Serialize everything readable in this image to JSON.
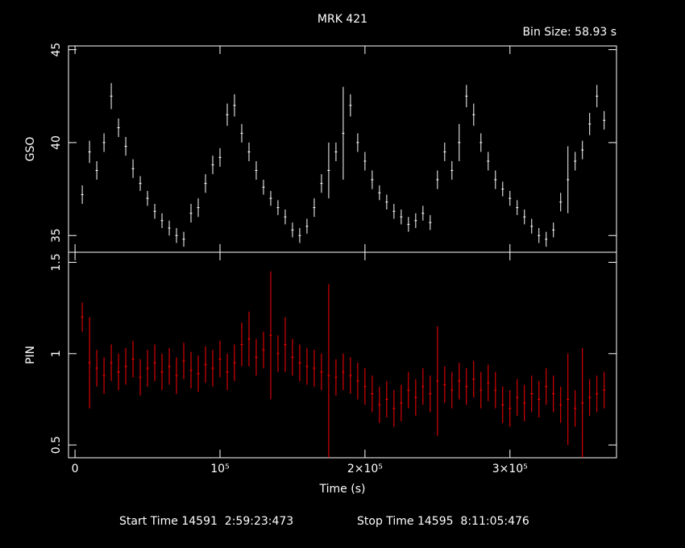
{
  "chart_data": [
    {
      "type": "errorbar",
      "title": "MRK 421",
      "subtitle": "Bin Size: 58.93 s",
      "ylabel": "GSO",
      "color": "#ffffff",
      "xlim": [
        -4500,
        373500
      ],
      "xticks": [
        0,
        100000,
        200000,
        300000
      ],
      "ylim": [
        34.1,
        45.2
      ],
      "yticks": [
        35,
        40,
        45
      ],
      "x": [
        5000,
        10000,
        15000,
        20000,
        25000,
        30000,
        35000,
        40000,
        45000,
        50000,
        55000,
        60000,
        65000,
        70000,
        75000,
        80000,
        85000,
        90000,
        95000,
        100000,
        105000,
        110000,
        115000,
        120000,
        125000,
        130000,
        135000,
        140000,
        145000,
        150000,
        155000,
        160000,
        165000,
        170000,
        175000,
        180000,
        185000,
        190000,
        195000,
        200000,
        205000,
        210000,
        215000,
        220000,
        225000,
        230000,
        235000,
        240000,
        245000,
        250000,
        255000,
        260000,
        265000,
        270000,
        275000,
        280000,
        285000,
        290000,
        295000,
        300000,
        305000,
        310000,
        315000,
        320000,
        325000,
        330000,
        335000,
        340000,
        345000,
        350000,
        355000,
        360000,
        365000
      ],
      "values": [
        37.2,
        39.5,
        38.5,
        40.0,
        42.5,
        40.8,
        39.8,
        38.6,
        37.8,
        37.0,
        36.3,
        35.8,
        35.4,
        35.0,
        34.8,
        36.2,
        36.5,
        37.8,
        38.8,
        39.2,
        41.5,
        42.0,
        40.5,
        39.5,
        38.5,
        37.6,
        37.0,
        36.5,
        36.0,
        35.3,
        35.0,
        35.5,
        36.5,
        37.8,
        38.5,
        39.5,
        40.5,
        42.0,
        40.0,
        39.0,
        38.0,
        37.3,
        36.8,
        36.3,
        36.0,
        35.6,
        35.8,
        36.2,
        35.7,
        38.0,
        39.5,
        38.5,
        40.0,
        42.5,
        41.5,
        40.0,
        39.0,
        38.0,
        37.5,
        37.0,
        36.5,
        36.0,
        35.5,
        35.0,
        34.8,
        35.3,
        36.8,
        38.0,
        39.0,
        39.6,
        41.0,
        42.5,
        41.2
      ],
      "errors": [
        0.5,
        0.6,
        0.5,
        0.5,
        0.7,
        0.5,
        0.5,
        0.5,
        0.4,
        0.4,
        0.4,
        0.4,
        0.4,
        0.4,
        0.4,
        0.5,
        0.5,
        0.5,
        0.5,
        0.5,
        0.6,
        0.6,
        0.5,
        0.5,
        0.5,
        0.4,
        0.4,
        0.4,
        0.4,
        0.4,
        0.4,
        0.4,
        0.5,
        0.5,
        1.5,
        0.5,
        2.5,
        0.6,
        0.5,
        0.5,
        0.5,
        0.4,
        0.4,
        0.4,
        0.4,
        0.4,
        0.4,
        0.4,
        0.4,
        0.5,
        0.5,
        0.5,
        1.0,
        0.6,
        0.6,
        0.5,
        0.5,
        0.5,
        0.4,
        0.4,
        0.4,
        0.4,
        0.4,
        0.4,
        0.4,
        0.4,
        0.5,
        1.8,
        0.5,
        0.5,
        0.6,
        0.6,
        0.5
      ]
    },
    {
      "type": "errorbar",
      "ylabel": "PIN",
      "xlabel": "Time (s)",
      "color": "#ff0000",
      "xlim": [
        -4500,
        373500
      ],
      "xticks": [
        0,
        {
          "value": 100000,
          "label": "10⁵"
        },
        {
          "value": 200000,
          "label": "2×10⁵"
        },
        {
          "value": 300000,
          "label": "3×10⁵"
        }
      ],
      "ylim": [
        0.43,
        1.555
      ],
      "yticks": [
        0.5,
        1,
        1.5
      ],
      "x": [
        5000,
        10000,
        15000,
        20000,
        25000,
        30000,
        35000,
        40000,
        45000,
        50000,
        55000,
        60000,
        65000,
        70000,
        75000,
        80000,
        85000,
        90000,
        95000,
        100000,
        105000,
        110000,
        115000,
        120000,
        125000,
        130000,
        135000,
        140000,
        145000,
        150000,
        155000,
        160000,
        165000,
        170000,
        175000,
        180000,
        185000,
        190000,
        195000,
        200000,
        205000,
        210000,
        215000,
        220000,
        225000,
        230000,
        235000,
        240000,
        245000,
        250000,
        255000,
        260000,
        265000,
        270000,
        275000,
        280000,
        285000,
        290000,
        295000,
        300000,
        305000,
        310000,
        315000,
        320000,
        325000,
        330000,
        335000,
        340000,
        345000,
        350000,
        355000,
        360000,
        365000
      ],
      "values": [
        1.2,
        0.95,
        0.92,
        0.88,
        0.95,
        0.9,
        0.93,
        0.97,
        0.87,
        0.92,
        0.95,
        0.9,
        0.93,
        0.88,
        0.96,
        0.91,
        0.89,
        0.94,
        0.92,
        0.97,
        0.9,
        0.95,
        1.05,
        1.08,
        0.98,
        1.02,
        1.1,
        1.0,
        1.05,
        0.98,
        0.95,
        0.93,
        0.92,
        0.9,
        0.88,
        0.87,
        0.9,
        0.88,
        0.85,
        0.82,
        0.78,
        0.72,
        0.75,
        0.7,
        0.73,
        0.8,
        0.76,
        0.82,
        0.78,
        0.85,
        0.83,
        0.8,
        0.85,
        0.82,
        0.86,
        0.8,
        0.84,
        0.8,
        0.72,
        0.7,
        0.76,
        0.73,
        0.78,
        0.75,
        0.82,
        0.78,
        0.72,
        0.75,
        0.7,
        0.73,
        0.76,
        0.78,
        0.8
      ],
      "errors": [
        0.08,
        0.25,
        0.1,
        0.1,
        0.1,
        0.1,
        0.1,
        0.1,
        0.1,
        0.1,
        0.1,
        0.1,
        0.1,
        0.1,
        0.1,
        0.1,
        0.1,
        0.1,
        0.1,
        0.1,
        0.1,
        0.1,
        0.12,
        0.15,
        0.1,
        0.1,
        0.35,
        0.1,
        0.15,
        0.1,
        0.1,
        0.1,
        0.1,
        0.1,
        0.5,
        0.1,
        0.1,
        0.1,
        0.1,
        0.1,
        0.1,
        0.1,
        0.1,
        0.1,
        0.1,
        0.1,
        0.1,
        0.1,
        0.1,
        0.3,
        0.1,
        0.1,
        0.1,
        0.1,
        0.1,
        0.1,
        0.1,
        0.1,
        0.1,
        0.1,
        0.1,
        0.1,
        0.1,
        0.1,
        0.1,
        0.1,
        0.1,
        0.25,
        0.1,
        0.3,
        0.1,
        0.1,
        0.1
      ]
    }
  ],
  "footer": {
    "start": "Start Time 14591  2:59:23:473",
    "stop": "Stop Time 14595  8:11:05:476"
  }
}
